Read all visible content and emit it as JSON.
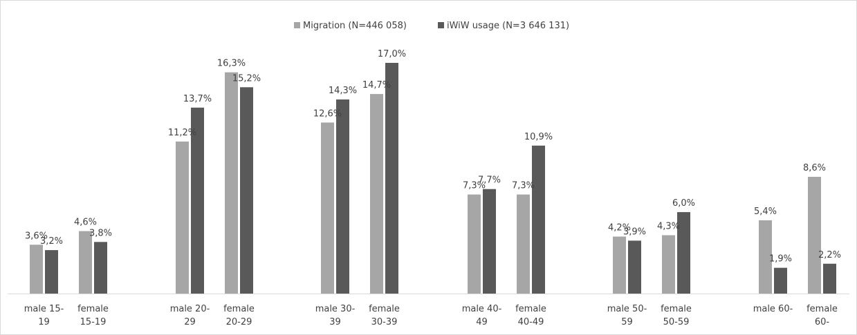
{
  "chart_data": {
    "type": "bar",
    "title": "",
    "xlabel": "",
    "ylabel": "",
    "ylim": [
      0,
      18
    ],
    "grid": false,
    "legend_position": "top-center",
    "categories": [
      [
        "male 15-",
        "19"
      ],
      [
        "female",
        "15-19"
      ],
      [
        "male 20-",
        "29"
      ],
      [
        "female",
        "20-29"
      ],
      [
        "male 30-",
        "39"
      ],
      [
        "female",
        "30-39"
      ],
      [
        "male 40-",
        "49"
      ],
      [
        "female",
        "40-49"
      ],
      [
        "male 50-",
        "59"
      ],
      [
        "female",
        "50-59"
      ],
      [
        "male 60-",
        ""
      ],
      [
        "female",
        "60-"
      ]
    ],
    "series": [
      {
        "name": "Migration (N=446 058)",
        "color": "#a6a6a6",
        "values": [
          3.6,
          4.6,
          11.2,
          16.3,
          12.6,
          14.7,
          7.3,
          7.3,
          4.2,
          4.3,
          5.4,
          8.6
        ],
        "labels": [
          "3,6%",
          "4,6%",
          "11,2%",
          "16,3%",
          "12,6%",
          "14,7%",
          "7,3%",
          "7,3%",
          "4,2%",
          "4,3%",
          "5,4%",
          "8,6%"
        ]
      },
      {
        "name": "iWiW usage (N=3 646 131)",
        "color": "#595959",
        "values": [
          3.2,
          3.8,
          13.7,
          15.2,
          14.3,
          17.0,
          7.7,
          10.9,
          3.9,
          6.0,
          1.9,
          2.2
        ],
        "labels": [
          "3,2%",
          "3,8%",
          "13,7%",
          "15,2%",
          "14,3%",
          "17,0%",
          "7,7%",
          "10,9%",
          "3,9%",
          "6,0%",
          "1,9%",
          "2,2%"
        ]
      }
    ]
  }
}
